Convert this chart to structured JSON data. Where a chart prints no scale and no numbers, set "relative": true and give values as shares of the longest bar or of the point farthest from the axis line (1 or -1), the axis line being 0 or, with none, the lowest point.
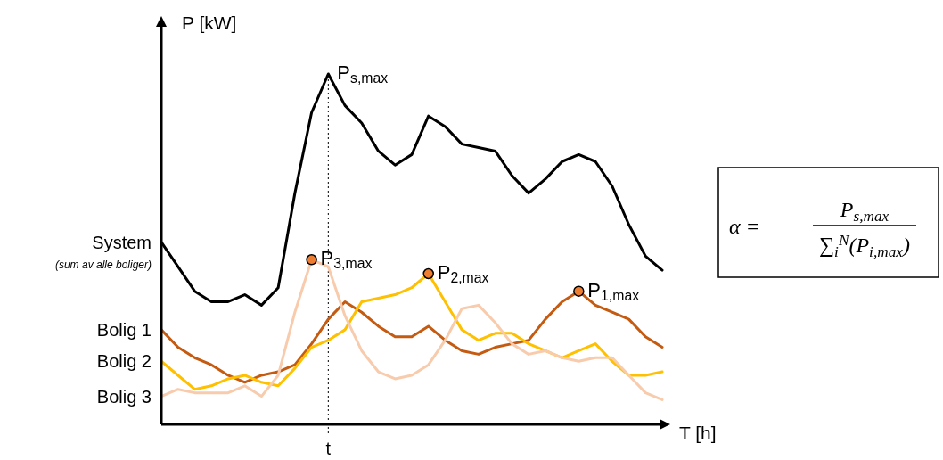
{
  "chart_data": {
    "type": "line",
    "relative": true,
    "xlabel": "T [h]",
    "ylabel": "P [kW]",
    "legend": false,
    "categories": [
      null,
      null,
      null,
      null,
      null,
      null,
      null,
      null,
      null,
      null,
      null,
      null,
      null,
      null,
      null,
      null,
      null,
      null,
      null,
      null,
      null,
      null,
      null,
      null,
      null,
      null,
      null,
      null,
      null,
      null,
      null
    ],
    "series": [
      {
        "name": "System",
        "color": "#000000",
        "values": [
          0.52,
          0.45,
          0.38,
          0.35,
          0.35,
          0.37,
          0.34,
          0.39,
          0.66,
          0.89,
          1,
          0.91,
          0.86,
          0.78,
          0.74,
          0.77,
          0.88,
          0.85,
          0.8,
          0.79,
          0.78,
          0.71,
          0.66,
          0.7,
          0.75,
          0.77,
          0.75,
          0.68,
          0.57,
          0.48,
          0.44
        ]
      },
      {
        "name": "Bolig 1",
        "color": "#c55a11",
        "values": [
          0.27,
          0.22,
          0.19,
          0.17,
          0.14,
          0.12,
          0.14,
          0.15,
          0.17,
          0.23,
          0.3,
          0.35,
          0.32,
          0.28,
          0.25,
          0.25,
          0.28,
          0.24,
          0.21,
          0.2,
          0.22,
          0.23,
          0.24,
          0.3,
          0.35,
          0.38,
          0.34,
          0.32,
          0.3,
          0.25,
          0.22
        ]
      },
      {
        "name": "Bolig 2",
        "color": "#ffc000",
        "values": [
          0.18,
          0.14,
          0.1,
          0.11,
          0.13,
          0.14,
          0.12,
          0.11,
          0.16,
          0.22,
          0.24,
          0.27,
          0.35,
          0.36,
          0.37,
          0.39,
          0.43,
          0.35,
          0.27,
          0.24,
          0.26,
          0.26,
          0.23,
          0.21,
          0.19,
          0.21,
          0.23,
          0.18,
          0.14,
          0.14,
          0.15
        ]
      },
      {
        "name": "Bolig 3",
        "color": "#f8cbad",
        "values": [
          0.08,
          0.1,
          0.09,
          0.09,
          0.09,
          0.11,
          0.08,
          0.14,
          0.32,
          0.47,
          0.45,
          0.31,
          0.21,
          0.15,
          0.13,
          0.14,
          0.17,
          0.24,
          0.33,
          0.34,
          0.29,
          0.23,
          0.2,
          0.21,
          0.19,
          0.18,
          0.19,
          0.19,
          0.14,
          0.09,
          0.07
        ]
      }
    ],
    "ref_lines": [
      {
        "axis": "x",
        "value": "t",
        "line_style": "dotted",
        "color": "#000000"
      }
    ],
    "annotations": [
      "P$_{s,max}$",
      "P$_{3,max}$",
      "P$_{2,max}$",
      "P$_{1,max}$",
      "(sum av alle boliger)",
      "α =",
      "P$_{s,max}$",
      "∑$_{i}$$^{N}$(P$_{i,max}$)"
    ]
  }
}
